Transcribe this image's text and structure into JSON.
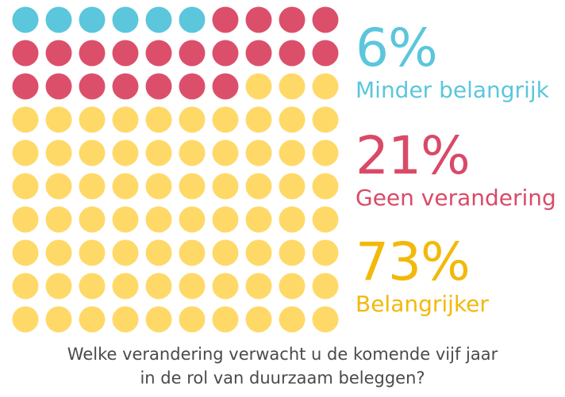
{
  "chart_data": {
    "type": "waffle",
    "grid": {
      "rows": 10,
      "cols": 10
    },
    "categories": [
      "Minder belangrijk",
      "Geen verandering",
      "Belangrijker"
    ],
    "values": [
      6,
      21,
      73
    ],
    "value_labels": [
      "6%",
      "21%",
      "73%"
    ],
    "colors": [
      "#5bc6dc",
      "#dc4f6b",
      "#ffd968"
    ],
    "text_colors": [
      "#5bc6dc",
      "#d94a67",
      "#f2b90a"
    ],
    "title_lines": [
      "Welke verandering verwacht u de komende vijf jaar",
      "in de rol van duurzaam beleggen?"
    ]
  }
}
